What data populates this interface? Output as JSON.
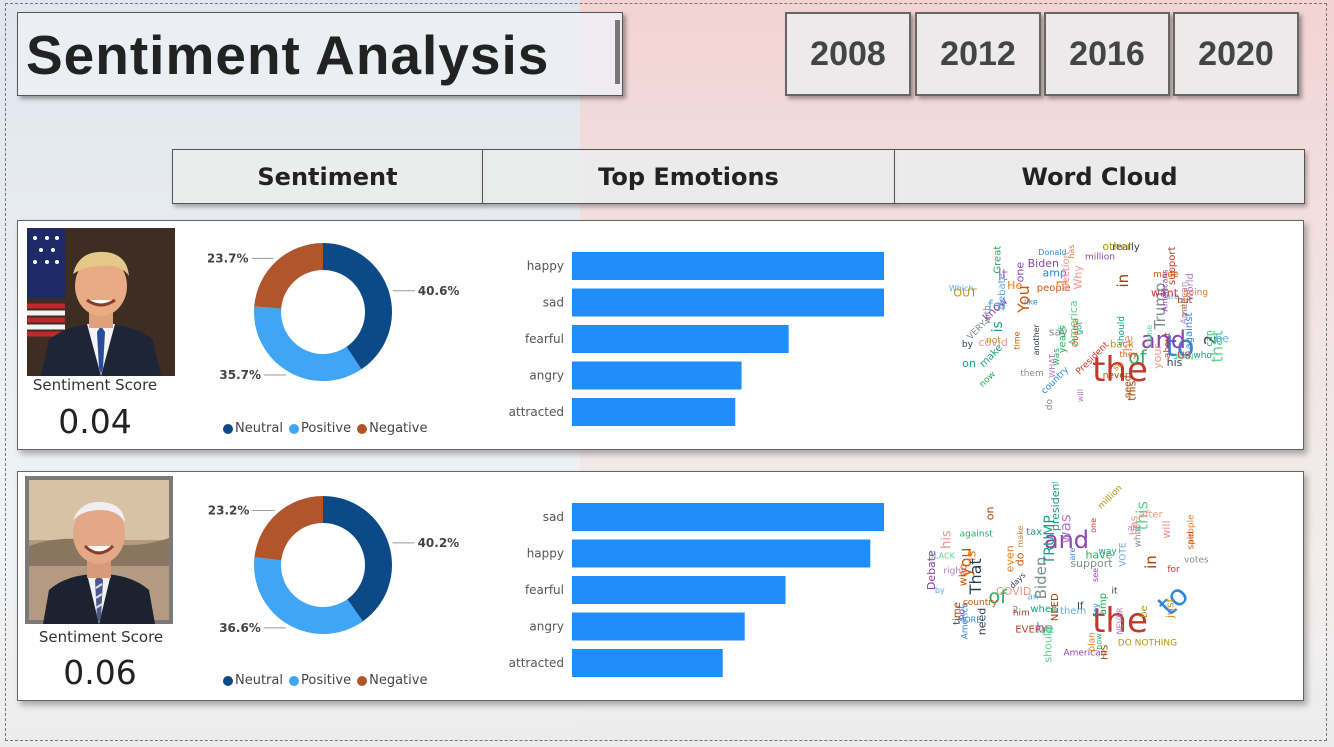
{
  "header": {
    "title": "Sentiment Analysis",
    "years": [
      "2008",
      "2012",
      "2016",
      "2020"
    ]
  },
  "columns": {
    "sentiment": "Sentiment",
    "emotions": "Top Emotions",
    "wordcloud": "Word Cloud"
  },
  "legend": {
    "neutral": "Neutral",
    "positive": "Positive",
    "negative": "Negative"
  },
  "colors": {
    "neutral": "#0b4a87",
    "positive": "#41a5f5",
    "negative": "#b1562c",
    "bar": "#1f8efb"
  },
  "panels": [
    {
      "score_label": "Sentiment Score",
      "score": "0.04",
      "wordcloud_words": [
        "the",
        "to",
        "and",
        "of",
        "You",
        "Trump",
        "is",
        "1",
        "2",
        "in",
        "for",
        "he",
        "that",
        "it",
        "not",
        "President",
        "Donald",
        "Biden",
        "was",
        "people",
        "with",
        "on",
        "has",
        "his",
        "this",
        "be",
        "your",
        "all",
        "will",
        "vote",
        "about",
        "amp",
        "one",
        "can",
        "they",
        "them",
        "who",
        "He",
        "by",
        "but",
        "are",
        "election",
        "America",
        "American",
        "back",
        "want",
        "like",
        "know",
        "now",
        "time",
        "do",
        "make",
        "so",
        "really",
        "need",
        "Which",
        "Why",
        "MAN",
        "WHAT",
        "OUT",
        "US",
        "country",
        "million",
        "years",
        "made",
        "say",
        "got",
        "going",
        "another",
        "never",
        "Debate",
        "covid",
        "same",
        "world",
        "other",
        "support",
        "against",
        "Americans",
        "Great",
        "Obama",
        "VERY",
        "should"
      ]
    },
    {
      "score_label": "Sentiment Score",
      "score": "0.06",
      "wordcloud_words": [
        "the",
        "to",
        "and",
        "of",
        "you",
        "Biden",
        "TRUMP",
        "is",
        "That",
        "in",
        "he",
        "his",
        "this",
        "was",
        "be",
        "for",
        "are",
        "not",
        "have",
        "do",
        "2",
        "president",
        "people",
        "it",
        "on",
        "by",
        "will",
        "get",
        "all",
        "just",
        "one",
        "America",
        "American",
        "amp",
        "who",
        "what",
        "when",
        "make",
        "need",
        "NEED",
        "VOTE",
        "COVID",
        "BLACK",
        "NEVER",
        "DO NOTHING",
        "EVERY",
        "MORE",
        "Debate",
        "against",
        "country",
        "support",
        "tax",
        "plan",
        "days",
        "time",
        "them",
        "has",
        "should",
        "right",
        "million",
        "him",
        "say",
        "see",
        "now",
        "said",
        "votes",
        "way",
        "even",
        "If",
        "HIS",
        "an",
        "after"
      ]
    }
  ],
  "chart_data": [
    {
      "type": "pie",
      "variant": "donut",
      "labels": [
        "Neutral",
        "Positive",
        "Negative"
      ],
      "values": [
        40.6,
        35.7,
        23.7
      ],
      "value_labels": [
        "40.6%",
        "35.7%",
        "23.7%"
      ],
      "legend": "bottom"
    },
    {
      "type": "bar",
      "orientation": "horizontal",
      "categories": [
        "happy",
        "sad",
        "fearful",
        "angry",
        "attracted"
      ],
      "values": [
        100,
        100,
        69,
        54,
        52
      ]
    },
    {
      "type": "pie",
      "variant": "donut",
      "labels": [
        "Neutral",
        "Positive",
        "Negative"
      ],
      "values": [
        40.2,
        36.6,
        23.2
      ],
      "value_labels": [
        "40.2%",
        "36.6%",
        "23.2%"
      ],
      "legend": "bottom"
    },
    {
      "type": "bar",
      "orientation": "horizontal",
      "categories": [
        "sad",
        "happy",
        "fearful",
        "angry",
        "attracted"
      ],
      "values": [
        100,
        95,
        68,
        55,
        48
      ]
    }
  ]
}
